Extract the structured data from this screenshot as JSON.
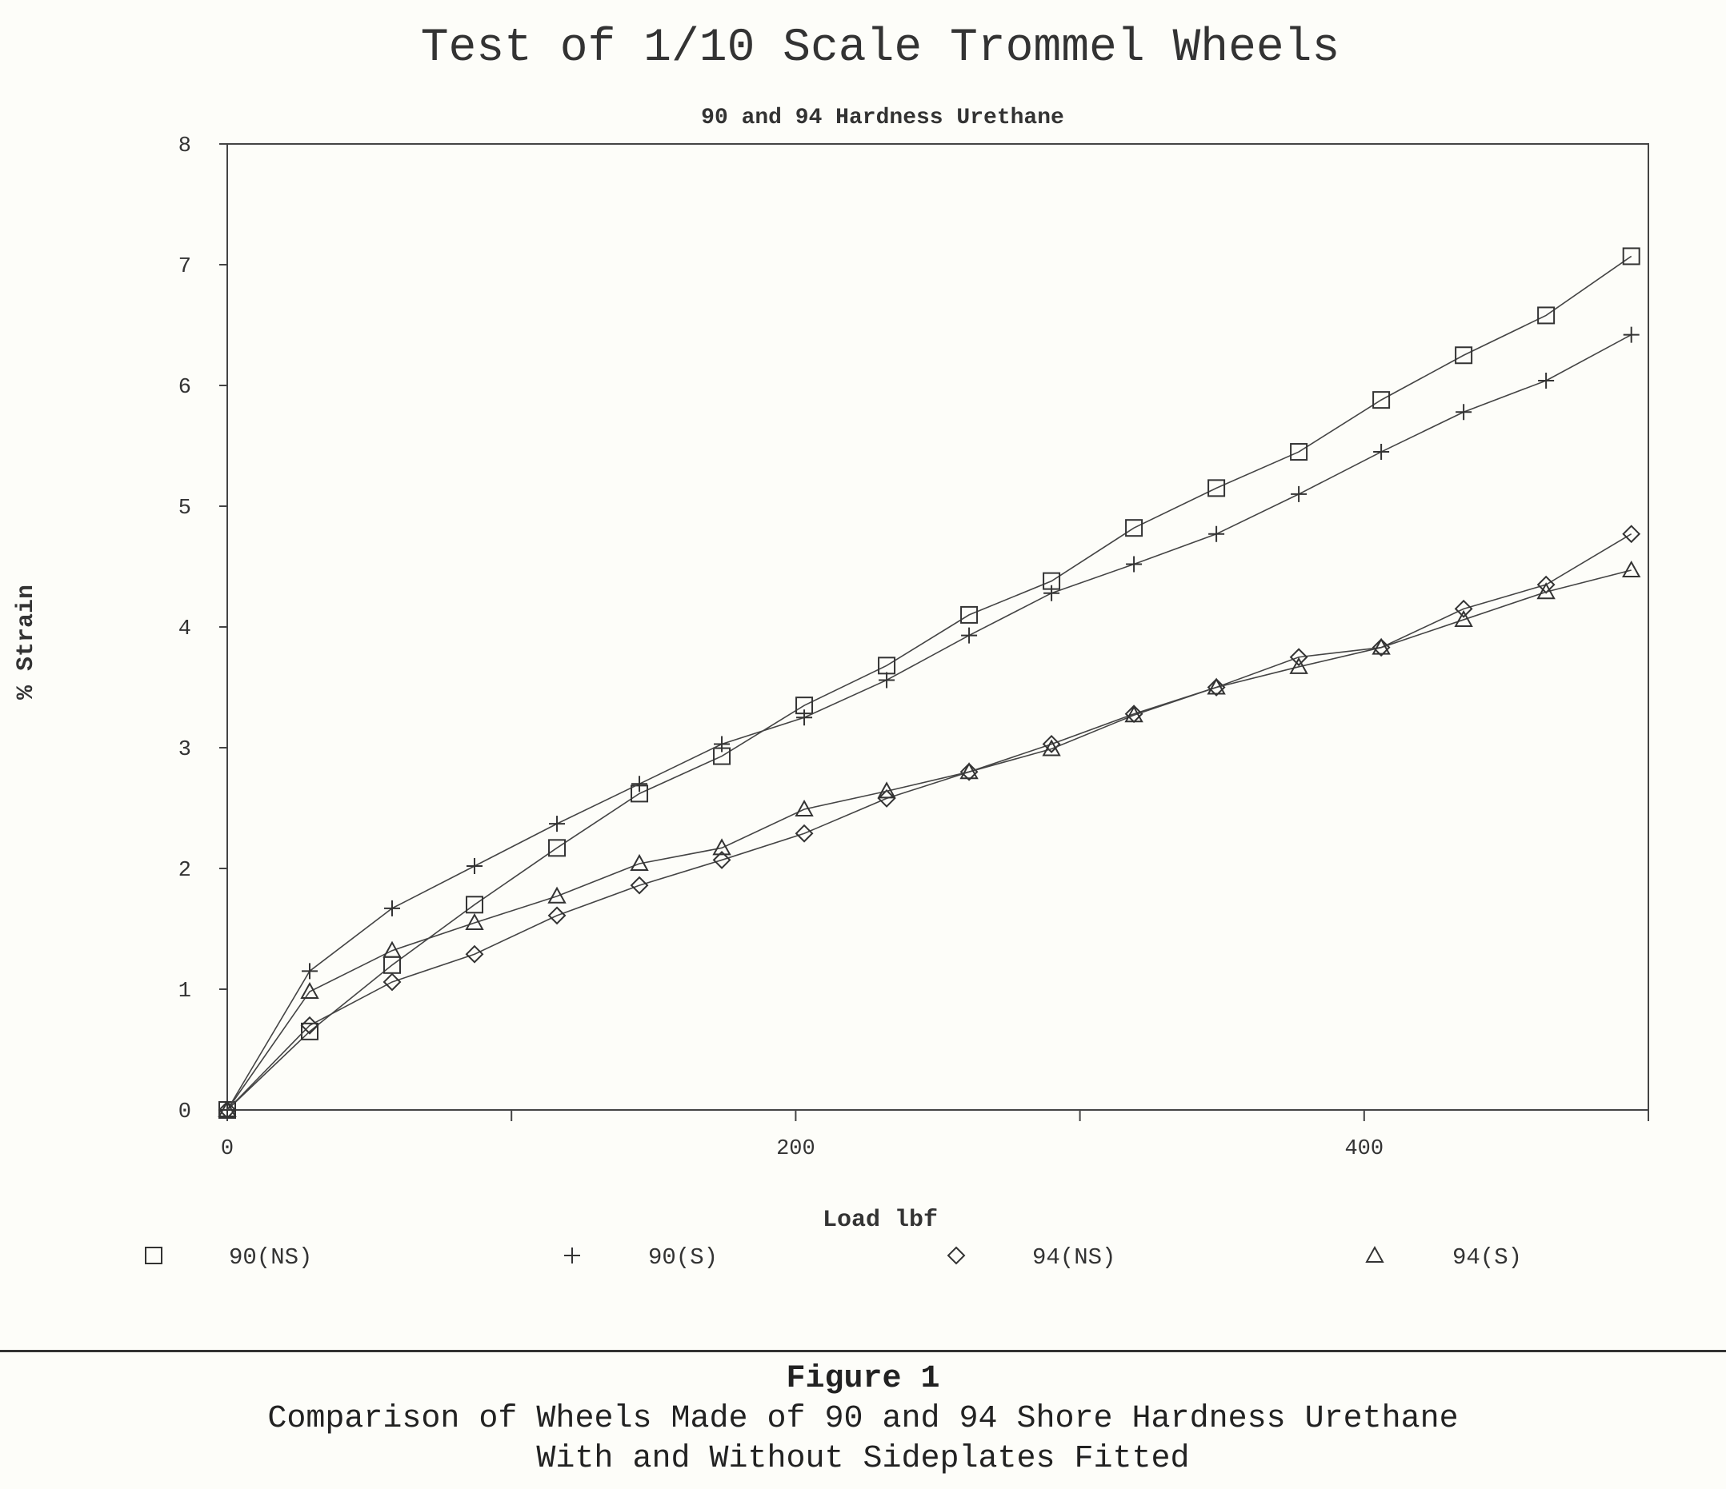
{
  "chart_data": {
    "type": "line",
    "title": "Test of 1/10 Scale Trommel Wheels",
    "subtitle": "90 and 94 Hardness Urethane",
    "xlabel": "Load lbf",
    "ylabel": "% Strain",
    "xlim": [
      0,
      500
    ],
    "ylim": [
      0,
      8
    ],
    "xticks": [
      0,
      200,
      400
    ],
    "yticks": [
      0,
      1,
      2,
      3,
      4,
      5,
      6,
      7,
      8
    ],
    "grid": false,
    "legend_position": "bottom",
    "x": [
      0,
      29,
      58,
      87,
      116,
      145,
      174,
      203,
      232,
      261,
      290,
      319,
      348,
      377,
      406,
      435,
      464,
      494
    ],
    "series": [
      {
        "name": "90(NS)",
        "marker": "square",
        "values": [
          0,
          0.65,
          1.2,
          1.7,
          2.17,
          2.62,
          2.93,
          3.35,
          3.68,
          4.1,
          4.38,
          4.82,
          5.15,
          5.45,
          5.88,
          6.25,
          6.58,
          7.07
        ]
      },
      {
        "name": "90(S)",
        "marker": "plus",
        "values": [
          0,
          1.15,
          1.67,
          2.02,
          2.37,
          2.7,
          3.03,
          3.25,
          3.56,
          3.93,
          4.28,
          4.52,
          4.77,
          5.1,
          5.45,
          5.78,
          6.04,
          6.42
        ]
      },
      {
        "name": "94(NS)",
        "marker": "diamond",
        "values": [
          0,
          0.7,
          1.06,
          1.29,
          1.61,
          1.86,
          2.07,
          2.29,
          2.58,
          2.8,
          3.03,
          3.28,
          3.5,
          3.75,
          3.83,
          4.15,
          4.35,
          4.77
        ]
      },
      {
        "name": "94(S)",
        "marker": "triangle",
        "values": [
          0,
          0.98,
          1.32,
          1.55,
          1.77,
          2.04,
          2.17,
          2.49,
          2.64,
          2.8,
          2.99,
          3.27,
          3.5,
          3.67,
          3.83,
          4.06,
          4.29,
          4.47
        ]
      }
    ]
  },
  "caption": {
    "figure_number": "Figure 1",
    "line1": "Comparison of Wheels Made of 90 and 94 Shore Hardness Urethane",
    "line2": "With and Without Sideplates Fitted"
  }
}
